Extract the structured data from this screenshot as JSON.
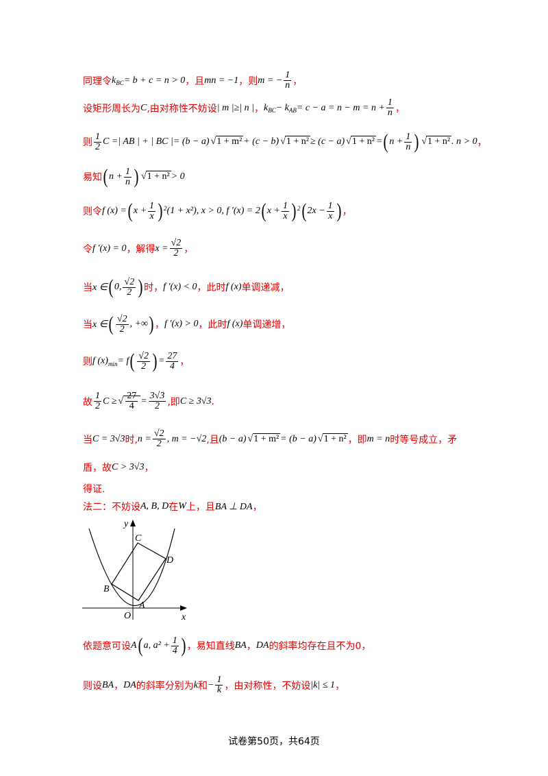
{
  "lines": [
    {
      "id": "l1",
      "segments": [
        {
          "t": "cn",
          "v": "同理令"
        },
        {
          "t": "math",
          "v": "k"
        },
        {
          "t": "sub",
          "v": "BC"
        },
        {
          "t": "math",
          "v": " = b + c = n > 0"
        },
        {
          "t": "cn",
          "v": "，且"
        },
        {
          "t": "math",
          "v": "mn = −1"
        },
        {
          "t": "cn",
          "v": "，则"
        },
        {
          "t": "math",
          "v": "m = −"
        },
        {
          "t": "frac",
          "num": "1",
          "den": "n"
        },
        {
          "t": "cn",
          "v": "，"
        }
      ]
    },
    {
      "id": "l2",
      "segments": [
        {
          "t": "cn",
          "v": "设矩形周长为"
        },
        {
          "t": "math",
          "v": "C"
        },
        {
          "t": "cn",
          "v": ",由对称性不妨设"
        },
        {
          "t": "math",
          "v": "| m |≥| n |"
        },
        {
          "t": "cn",
          "v": "，"
        },
        {
          "t": "math",
          "v": "k"
        },
        {
          "t": "sub",
          "v": "BC"
        },
        {
          "t": "math",
          "v": " − k"
        },
        {
          "t": "sub",
          "v": "AB"
        },
        {
          "t": "math",
          "v": " = c − a = n − m = n + "
        },
        {
          "t": "frac",
          "num": "1",
          "den": "n"
        },
        {
          "t": "cn",
          "v": "，"
        }
      ]
    },
    {
      "id": "l3",
      "segments": [
        {
          "t": "cn",
          "v": "则"
        },
        {
          "t": "frac",
          "num": "1",
          "den": "2"
        },
        {
          "t": "math",
          "v": "C =| AB | + | BC |= (b − a)"
        },
        {
          "t": "sqrt",
          "v": "1 + m²"
        },
        {
          "t": "math",
          "v": " + (c − b)"
        },
        {
          "t": "sqrt",
          "v": "1 + n²"
        },
        {
          "t": "math",
          "v": " ≥ (c − a)"
        },
        {
          "t": "sqrt",
          "v": "1 + n²"
        },
        {
          "t": "math",
          "v": " = "
        },
        {
          "t": "lp"
        },
        {
          "t": "math",
          "v": "n + "
        },
        {
          "t": "frac",
          "num": "1",
          "den": "n"
        },
        {
          "t": "rp"
        },
        {
          "t": "sqrt",
          "v": "1 + n²"
        },
        {
          "t": "math",
          "v": " . n > 0"
        },
        {
          "t": "cn",
          "v": "，"
        }
      ]
    },
    {
      "id": "l4",
      "segments": [
        {
          "t": "cn",
          "v": "易知"
        },
        {
          "t": "lp"
        },
        {
          "t": "math",
          "v": "n + "
        },
        {
          "t": "frac",
          "num": "1",
          "den": "n"
        },
        {
          "t": "rp"
        },
        {
          "t": "sqrt",
          "v": "1 + n²"
        },
        {
          "t": "math",
          "v": " > 0"
        }
      ]
    },
    {
      "id": "l5",
      "segments": [
        {
          "t": "cn",
          "v": "则令"
        },
        {
          "t": "math",
          "v": "f (x) = "
        },
        {
          "t": "lp"
        },
        {
          "t": "math",
          "v": "x + "
        },
        {
          "t": "frac",
          "num": "1",
          "den": "x"
        },
        {
          "t": "rp"
        },
        {
          "t": "sup",
          "v": "2"
        },
        {
          "t": "math",
          "v": "(1 + x²), x > 0, f ′(x) = 2"
        },
        {
          "t": "lp"
        },
        {
          "t": "math",
          "v": "x + "
        },
        {
          "t": "frac",
          "num": "1",
          "den": "x"
        },
        {
          "t": "rp"
        },
        {
          "t": "sup",
          "v": "2"
        },
        {
          "t": "lp"
        },
        {
          "t": "math",
          "v": "2x − "
        },
        {
          "t": "frac",
          "num": "1",
          "den": "x"
        },
        {
          "t": "rp"
        },
        {
          "t": "cn",
          "v": "，"
        }
      ]
    },
    {
      "id": "l6",
      "segments": [
        {
          "t": "cn",
          "v": "令 "
        },
        {
          "t": "math",
          "v": "f ′(x) = 0"
        },
        {
          "t": "cn",
          "v": "，解得"
        },
        {
          "t": "math",
          "v": "x = "
        },
        {
          "t": "frac",
          "num": "√2",
          "den": "2"
        },
        {
          "t": "cn",
          "v": "，"
        }
      ]
    },
    {
      "id": "l7",
      "segments": [
        {
          "t": "cn",
          "v": "当"
        },
        {
          "t": "math",
          "v": "x ∈ "
        },
        {
          "t": "lp"
        },
        {
          "t": "math",
          "v": "0, "
        },
        {
          "t": "frac",
          "num": "√2",
          "den": "2"
        },
        {
          "t": "rp"
        },
        {
          "t": "cn",
          "v": "时，"
        },
        {
          "t": "math",
          "v": "  f ′(x) < 0"
        },
        {
          "t": "cn",
          "v": "，此时 "
        },
        {
          "t": "math",
          "v": "f (x)"
        },
        {
          "t": "cn",
          "v": " 单调递减，"
        }
      ]
    },
    {
      "id": "l8",
      "segments": [
        {
          "t": "cn",
          "v": "当"
        },
        {
          "t": "math",
          "v": "x ∈ "
        },
        {
          "t": "lp"
        },
        {
          "t": "frac",
          "num": "√2",
          "den": "2"
        },
        {
          "t": "math",
          "v": ", +∞"
        },
        {
          "t": "rp"
        },
        {
          "t": "cn",
          "v": "，"
        },
        {
          "t": "math",
          "v": "  f ′(x) > 0"
        },
        {
          "t": "cn",
          "v": "，此时 "
        },
        {
          "t": "math",
          "v": "f (x)"
        },
        {
          "t": "cn",
          "v": " 单调递增，"
        }
      ]
    },
    {
      "id": "l9",
      "segments": [
        {
          "t": "cn",
          "v": "则"
        },
        {
          "t": "math",
          "v": "f (x)"
        },
        {
          "t": "sub",
          "v": "min"
        },
        {
          "t": "math",
          "v": " = f "
        },
        {
          "t": "lp"
        },
        {
          "t": "frac",
          "num": "√2",
          "den": "2"
        },
        {
          "t": "rp"
        },
        {
          "t": "math",
          "v": " = "
        },
        {
          "t": "frac",
          "num": "27",
          "den": "4"
        },
        {
          "t": "cn",
          "v": "，"
        }
      ]
    },
    {
      "id": "l10",
      "segments": [
        {
          "t": "cn",
          "v": "故"
        },
        {
          "t": "frac",
          "num": "1",
          "den": "2"
        },
        {
          "t": "math",
          "v": "C ≥ "
        },
        {
          "t": "sqrtfrac",
          "num": "27",
          "den": "4"
        },
        {
          "t": "math",
          "v": " = "
        },
        {
          "t": "frac",
          "num": "3√3",
          "den": "2"
        },
        {
          "t": "cn",
          "v": ",即"
        },
        {
          "t": "math",
          "v": "C ≥ 3√3"
        },
        {
          "t": "cn",
          "v": "."
        }
      ]
    },
    {
      "id": "l11",
      "segments": [
        {
          "t": "cn",
          "v": "当"
        },
        {
          "t": "math",
          "v": "C = 3√3"
        },
        {
          "t": "cn",
          "v": "时,"
        },
        {
          "t": "math",
          "v": "n = "
        },
        {
          "t": "frac",
          "num": "√2",
          "den": "2"
        },
        {
          "t": "math",
          "v": ", m = −√2"
        },
        {
          "t": "cn",
          "v": ",且"
        },
        {
          "t": "math",
          "v": "(b − a)"
        },
        {
          "t": "sqrt",
          "v": "1 + m²"
        },
        {
          "t": "math",
          "v": " = (b − a)"
        },
        {
          "t": "sqrt",
          "v": "1 + n²"
        },
        {
          "t": "cn",
          "v": "，即 "
        },
        {
          "t": "math",
          "v": "m = n"
        },
        {
          "t": "cn",
          "v": " 时等号成立，矛"
        }
      ]
    },
    {
      "id": "l12",
      "segments": [
        {
          "t": "cn",
          "v": "盾，故"
        },
        {
          "t": "math",
          "v": "C > 3√3"
        },
        {
          "t": "cn",
          "v": "，"
        }
      ]
    },
    {
      "id": "l13",
      "segments": [
        {
          "t": "cn",
          "v": "得证."
        }
      ]
    },
    {
      "id": "l14",
      "segments": [
        {
          "t": "cn",
          "v": "法二：不妨设"
        },
        {
          "t": "math",
          "v": "A, B, D"
        },
        {
          "t": "cn",
          "v": " 在"
        },
        {
          "t": "math",
          "v": "W"
        },
        {
          "t": "cn",
          "v": "上，且"
        },
        {
          "t": "math",
          "v": "BA ⊥ DA"
        },
        {
          "t": "cn",
          "v": "，"
        }
      ]
    },
    {
      "id": "l15",
      "segments": [
        {
          "t": "cn",
          "v": "依题意可设"
        },
        {
          "t": "math",
          "v": "A"
        },
        {
          "t": "lp"
        },
        {
          "t": "math",
          "v": "a, a² + "
        },
        {
          "t": "frac",
          "num": "1",
          "den": "4"
        },
        {
          "t": "rp"
        },
        {
          "t": "cn",
          "v": "，易知直线 "
        },
        {
          "t": "math",
          "v": "BA"
        },
        {
          "t": "cn",
          "v": " ，"
        },
        {
          "t": "math",
          "v": "DA"
        },
        {
          "t": "cn",
          "v": " 的斜率均存在且不为0，"
        }
      ]
    },
    {
      "id": "l16",
      "segments": [
        {
          "t": "cn",
          "v": "则设 "
        },
        {
          "t": "math",
          "v": "BA"
        },
        {
          "t": "cn",
          "v": "，"
        },
        {
          "t": "math",
          "v": "DA"
        },
        {
          "t": "cn",
          "v": " 的斜率分别为"
        },
        {
          "t": "math",
          "v": "k"
        },
        {
          "t": "cn",
          "v": "和"
        },
        {
          "t": "math",
          "v": "−"
        },
        {
          "t": "frac",
          "num": "1",
          "den": "k"
        },
        {
          "t": "cn",
          "v": "，由对称性，不妨设"
        },
        {
          "t": "math",
          "v": "|k| ≤ 1"
        },
        {
          "t": "cn",
          "v": "，"
        }
      ]
    }
  ],
  "figure": {
    "axis_x_label": "x",
    "axis_y_label": "y",
    "origin_label": "O",
    "points": [
      {
        "name": "A",
        "x": 0.55,
        "y": 0.55
      },
      {
        "name": "B",
        "x": -0.5,
        "y": 1.45
      },
      {
        "name": "C",
        "x": 0.6,
        "y": 3.6
      },
      {
        "name": "D",
        "x": 1.6,
        "y": 2.7
      }
    ],
    "curve": "y = x² + 1/4"
  },
  "footer": "试卷第50页，共64页"
}
